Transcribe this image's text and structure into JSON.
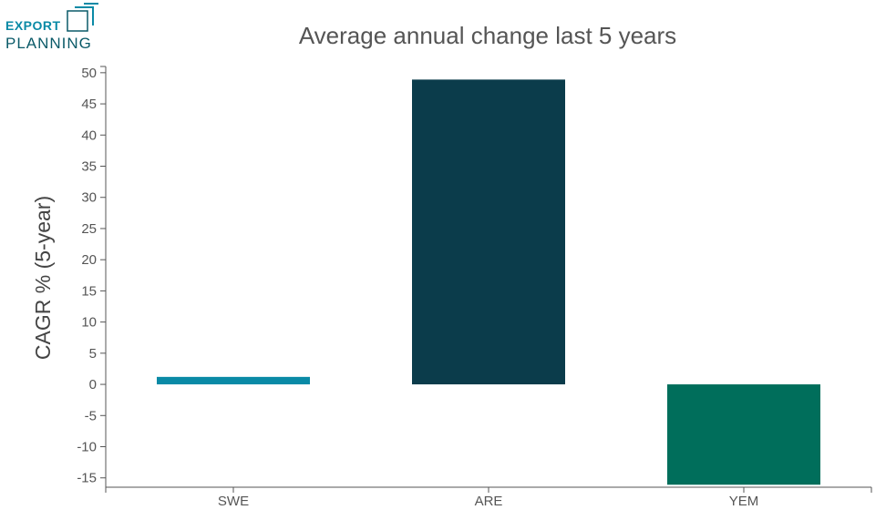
{
  "logo": {
    "line1": "EXPORT",
    "line2": "PLANNING"
  },
  "chart_data": {
    "type": "bar",
    "title": "Average annual change last 5 years",
    "xlabel": "",
    "ylabel": "CAGR % (5-year)",
    "categories": [
      "SWE",
      "ARE",
      "YEM"
    ],
    "values": [
      1.2,
      48.9,
      -16.1
    ],
    "colors": [
      "#0a8aa6",
      "#0b3c4b",
      "#006e5b"
    ],
    "ylim": [
      -16.5,
      51
    ],
    "yticks": [
      50,
      45,
      40,
      35,
      30,
      25,
      20,
      15,
      10,
      5,
      0,
      -5,
      -10,
      -15
    ],
    "grid": false
  }
}
